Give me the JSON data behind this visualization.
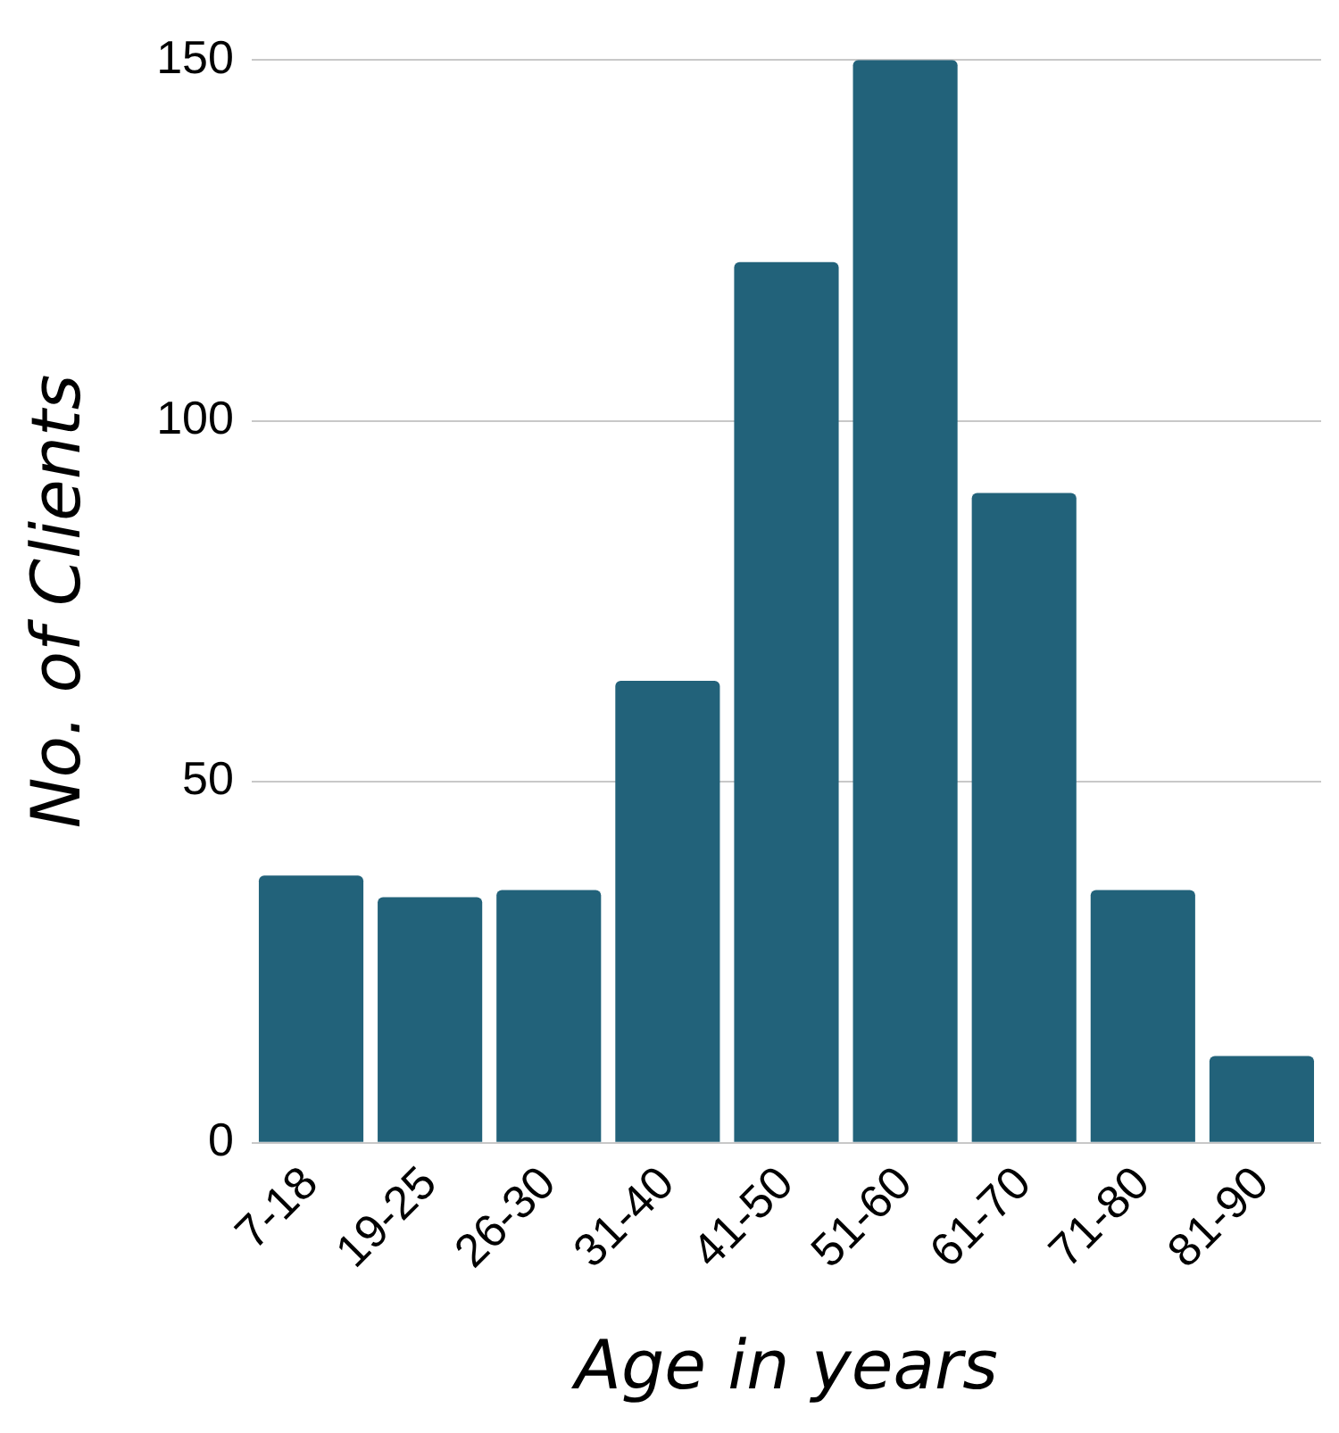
{
  "chart_data": {
    "type": "bar",
    "xlabel": "Age in years",
    "ylabel": "No. of Clients",
    "categories": [
      "7-18",
      "19-25",
      "26-30",
      "31-40",
      "41-50",
      "51-60",
      "61-70",
      "71-80",
      "81-90"
    ],
    "values": [
      37,
      34,
      35,
      64,
      122,
      150,
      90,
      35,
      12
    ],
    "color": "#22627a",
    "ylim": [
      0,
      150
    ],
    "yticks": [
      0,
      50,
      100,
      150
    ],
    "grid": "y"
  }
}
